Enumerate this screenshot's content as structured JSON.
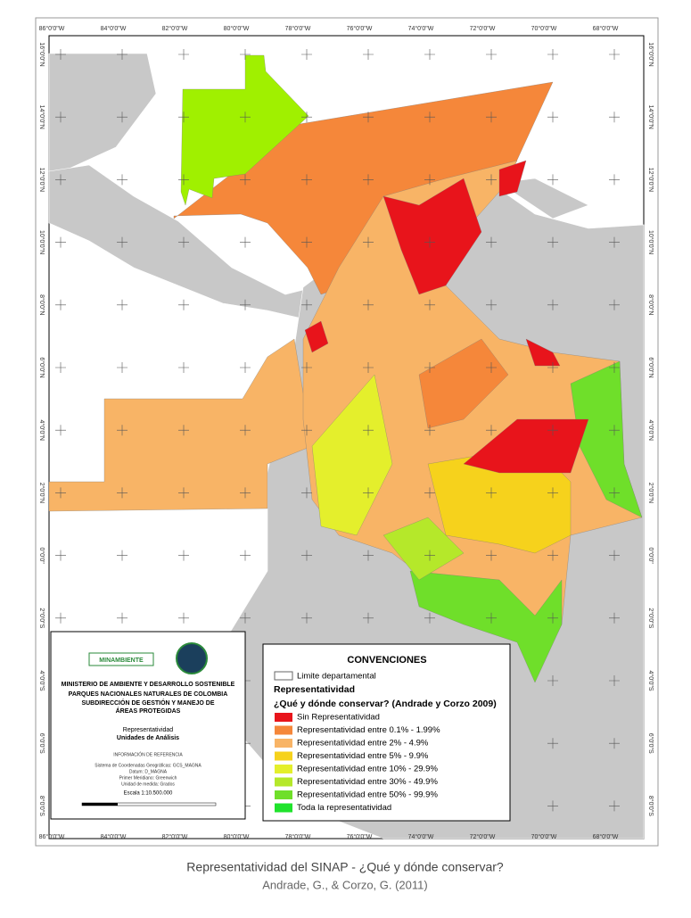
{
  "map": {
    "lon_labels": [
      "86°0'0\"W",
      "84°0'0\"W",
      "82°0'0\"W",
      "80°0'0\"W",
      "78°0'0\"W",
      "76°0'0\"W",
      "74°0'0\"W",
      "72°0'0\"W",
      "70°0'0\"W",
      "68°0'0\"W"
    ],
    "lat_labels": [
      "16°0'0\"N",
      "14°0'0\"N",
      "12°0'0\"N",
      "10°0'0\"N",
      "8°0'0\"N",
      "6°0'0\"N",
      "4°0'0\"N",
      "2°0'0\"N",
      "0°0'0\"",
      "2°0'0\"S",
      "4°0'0\"S",
      "6°0'0\"S",
      "8°0'0\"S"
    ]
  },
  "info_box": {
    "logo": "MINAMBIENTE",
    "lines": [
      "MINISTERIO DE AMBIENTE Y DESARROLLO SOSTENIBLE",
      "PARQUES NACIONALES NATURALES DE COLOMBIA",
      "SUBDIRECCIÓN DE GESTIÓN Y MANEJO DE",
      "ÁREAS PROTEGIDAS"
    ],
    "map_title": [
      "Representatividad",
      "Unidades de Análisis"
    ],
    "reference_title": "INFORMACIÓN DE REFERENCIA",
    "reference": [
      "Sistema de Coordenadas Geográficas: GCS_MAGNA",
      "Datum: D_MAGNA",
      "Primer Meridiano: Greenwich",
      "Unidad de medida: Grados"
    ],
    "scale": "Escala 1:10.500.000"
  },
  "legend": {
    "title": "CONVENCIONES",
    "boundary": "Limite departamental",
    "subtitle": "Representatividad",
    "subtitle2": "¿Qué y dónde conservar? (Andrade y Corzo 2009)",
    "items": [
      {
        "label": "Sin Representatividad",
        "color": "#e8141b"
      },
      {
        "label": "Representatividad entre 0.1% - 1.99%",
        "color": "#f5873a"
      },
      {
        "label": "Representatividad entre 2% - 4.9%",
        "color": "#f8b466"
      },
      {
        "label": "Representatividad entre 5% - 9.9%",
        "color": "#f6d21c"
      },
      {
        "label": "Representatividad entre 10% - 29.9%",
        "color": "#e4ef2c"
      },
      {
        "label": "Representatividad entre 30% - 49.9%",
        "color": "#b5e82a"
      },
      {
        "label": "Representatividad entre 50% - 99.9%",
        "color": "#6fdf2a"
      },
      {
        "label": "Toda la representatividad",
        "color": "#1fe32c"
      }
    ]
  },
  "caption": {
    "title": "Representatividad del SINAP - ¿Qué y dónde conservar?",
    "source": "Andrade, G., & Corzo, G. (2011)"
  }
}
